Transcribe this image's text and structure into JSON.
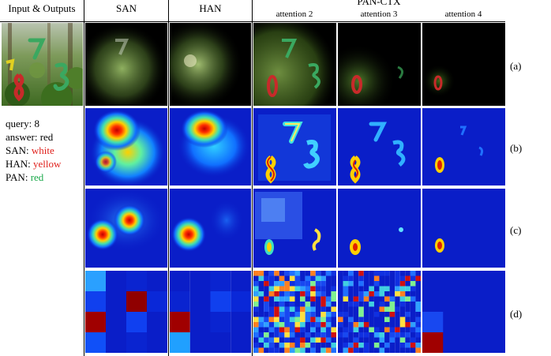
{
  "header": {
    "input_outputs": "Input & Outputs",
    "san": "SAN",
    "han": "HAN",
    "pan_ctx": "PAN-CTX",
    "attention_2": "attention 2",
    "attention_3": "attention 3",
    "attention_4": "attention 4"
  },
  "rows": [
    "(a)",
    "(b)",
    "(c)",
    "(d)"
  ],
  "legend": {
    "query_label": "query:",
    "query_value": "8",
    "answer_label": "answer:",
    "answer_value": "red",
    "san_label": "SAN:",
    "san_value": "white",
    "han_label": "HAN:",
    "han_value": "yellow",
    "pan_label": "PAN:",
    "pan_value": "red"
  },
  "colors": {
    "legend_red": "#e0201c",
    "legend_green": "#1aa84a",
    "digit_green": "#3aa860",
    "digit_red": "#c82a2a",
    "digit_yellow": "#e0d020",
    "heat_bg": "#0a1ec8"
  }
}
